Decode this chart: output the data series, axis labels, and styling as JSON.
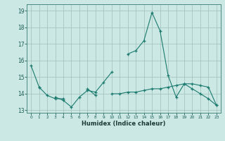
{
  "xlabel": "Humidex (Indice chaleur)",
  "x": [
    0,
    1,
    2,
    3,
    4,
    5,
    6,
    7,
    8,
    9,
    10,
    11,
    12,
    13,
    14,
    15,
    16,
    17,
    18,
    19,
    20,
    21,
    22,
    23
  ],
  "line1": [
    15.7,
    14.4,
    null,
    13.8,
    13.6,
    13.2,
    13.8,
    14.2,
    14.1,
    14.7,
    15.3,
    null,
    16.4,
    16.6,
    17.2,
    18.9,
    17.8,
    15.1,
    13.8,
    14.6,
    14.3,
    14.0,
    13.7,
    13.3
  ],
  "line2": [
    null,
    14.4,
    13.9,
    13.7,
    13.7,
    null,
    null,
    14.3,
    13.9,
    null,
    null,
    null,
    null,
    null,
    null,
    null,
    null,
    null,
    null,
    null,
    null,
    null,
    null,
    null
  ],
  "line3": [
    null,
    null,
    null,
    null,
    null,
    null,
    null,
    null,
    null,
    null,
    14.0,
    14.0,
    14.1,
    14.1,
    14.2,
    14.3,
    14.3,
    14.4,
    14.5,
    14.6,
    14.6,
    14.5,
    14.4,
    13.3
  ],
  "line_color": "#1a7a6e",
  "bg_color": "#cce8e4",
  "grid_color": "#9fbfbb",
  "ylim": [
    12.85,
    19.4
  ],
  "xlim": [
    -0.5,
    23.5
  ],
  "yticks": [
    13,
    14,
    15,
    16,
    17,
    18,
    19
  ],
  "xticks": [
    0,
    1,
    2,
    3,
    4,
    5,
    6,
    7,
    8,
    9,
    10,
    11,
    12,
    13,
    14,
    15,
    16,
    17,
    18,
    19,
    20,
    21,
    22,
    23
  ]
}
